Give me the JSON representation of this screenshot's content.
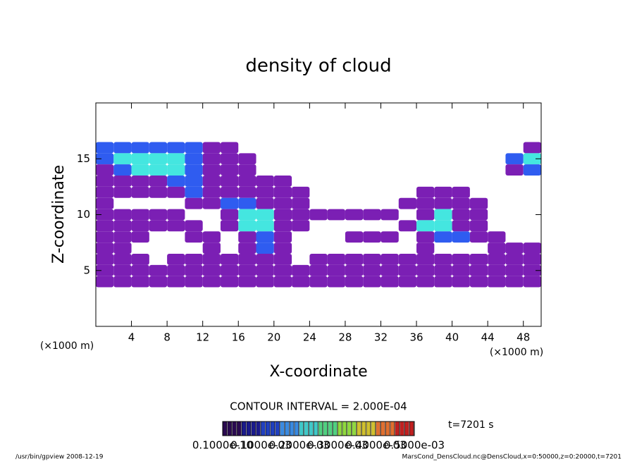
{
  "chart_data": {
    "type": "contour",
    "title": "density of cloud",
    "x_label": "X-coordinate",
    "y_label": "Z-coordinate",
    "x_unit": "(×1000 m)",
    "xlim": [
      0,
      50
    ],
    "ylim": [
      0,
      20
    ],
    "xticks": [
      4,
      8,
      12,
      16,
      20,
      24,
      28,
      32,
      36,
      40,
      44,
      48
    ],
    "yticks": [
      5,
      10,
      15
    ],
    "x": [
      1,
      3,
      5,
      7,
      9,
      11,
      13,
      15,
      17,
      19,
      21,
      23,
      25,
      27,
      29,
      31,
      33,
      35,
      37,
      39,
      41,
      43,
      45,
      47,
      49
    ],
    "z": [
      16,
      15,
      14,
      13,
      12,
      11,
      10,
      9,
      8,
      7,
      6,
      5,
      4
    ],
    "values": [
      [
        0.0002,
        0.0002,
        0.0002,
        0.0002,
        0.0002,
        0.0002,
        0.0001,
        0.0001,
        0,
        0,
        0,
        0,
        0,
        0,
        0,
        0,
        0,
        0,
        0,
        0,
        0,
        0,
        0,
        0,
        0.0001
      ],
      [
        0.0002,
        0.0003,
        0.0003,
        0.0003,
        0.0003,
        0.0002,
        0.0001,
        0.0001,
        0.0001,
        0,
        0,
        0,
        0,
        0,
        0,
        0,
        0,
        0,
        0,
        0,
        0,
        0,
        0,
        0.0002,
        0.0003
      ],
      [
        0.0001,
        0.0002,
        0.0003,
        0.0003,
        0.0003,
        0.0002,
        0.0001,
        0.0001,
        0.0001,
        0,
        0,
        0,
        0,
        0,
        0,
        0,
        0,
        0,
        0,
        0,
        0,
        0,
        0,
        0.0001,
        0.0002
      ],
      [
        0.0001,
        0.0001,
        0.0001,
        0.0001,
        0.0002,
        0.0002,
        0.0001,
        0.0001,
        0.0001,
        0.0001,
        0.0001,
        0,
        0,
        0,
        0,
        0,
        0,
        0,
        0,
        0,
        0,
        0,
        0,
        0,
        0
      ],
      [
        0.0001,
        0.0001,
        0.0001,
        0.0001,
        0.0001,
        0.0002,
        0.0001,
        0.0001,
        0.0001,
        0.0001,
        0.0001,
        0.0001,
        0,
        0,
        0,
        0,
        0,
        0,
        0.0001,
        0.0001,
        0.0001,
        0,
        0,
        0,
        0
      ],
      [
        0.0001,
        0,
        0,
        0,
        0,
        0.0001,
        0.0001,
        0.0002,
        0.0002,
        0.0001,
        0.0001,
        0.0001,
        0,
        0,
        0,
        0,
        0,
        0.0001,
        0.0001,
        0.0001,
        0.0001,
        0.0001,
        0,
        0,
        0
      ],
      [
        0.0001,
        0.0001,
        0.0001,
        0.0001,
        0.0001,
        0,
        0,
        0.0001,
        0.0003,
        0.0003,
        0.0001,
        0.0001,
        0.0001,
        0.0001,
        0.0001,
        0.0001,
        0.0001,
        0,
        0.0001,
        0.0003,
        0.0001,
        0.0001,
        0,
        0,
        0
      ],
      [
        0.0001,
        0.0001,
        0.0001,
        0.0001,
        0.0001,
        0.0001,
        0,
        0.0001,
        0.0003,
        0.0003,
        0.0001,
        0.0001,
        0,
        0,
        0,
        0,
        0,
        0.0001,
        0.0003,
        0.0003,
        0.0001,
        0.0001,
        0,
        0,
        0
      ],
      [
        0.0001,
        0.0001,
        0.0001,
        0,
        0,
        0.0001,
        0.0001,
        0,
        0.0001,
        0.0002,
        0.0001,
        0,
        0,
        0,
        0.0001,
        0.0001,
        0.0001,
        0,
        0.0001,
        0.0002,
        0.0002,
        0.0001,
        0.0001,
        0,
        0
      ],
      [
        0.0001,
        0.0001,
        0,
        0,
        0,
        0,
        0.0001,
        0,
        0.0001,
        0.0002,
        0.0001,
        0,
        0,
        0,
        0,
        0,
        0,
        0,
        0.0001,
        0,
        0,
        0,
        0.0001,
        0.0001,
        0.0001
      ],
      [
        0.0001,
        0.0001,
        0.0001,
        0,
        0.0001,
        0.0001,
        0.0001,
        0.0001,
        0.0001,
        0.0001,
        0.0001,
        0,
        0.0001,
        0.0001,
        0.0001,
        0.0001,
        0.0001,
        0.0001,
        0.0001,
        0.0001,
        0.0001,
        0.0001,
        0.0001,
        0.0001,
        0.0001
      ],
      [
        0.0001,
        0.0001,
        0.0001,
        0.0001,
        0.0001,
        0.0001,
        0.0001,
        0.0001,
        0.0001,
        0.0001,
        0.0001,
        0.0001,
        0.0001,
        0.0001,
        0.0001,
        0.0001,
        0.0001,
        0.0001,
        0.0001,
        0.0001,
        0.0001,
        0.0001,
        0.0001,
        0.0001,
        0.0001
      ],
      [
        0.0001,
        0.0001,
        0.0001,
        0.0001,
        0.0001,
        0.0001,
        0.0001,
        0.0001,
        0.0001,
        0.0001,
        0.0001,
        0.0001,
        0.0001,
        0.0001,
        0.0001,
        0.0001,
        0.0001,
        0.0001,
        0.0001,
        0.0001,
        0.0001,
        0.0001,
        0.0001,
        0.0001,
        0.0001
      ]
    ],
    "level_colors": [
      {
        "value": 0.0001,
        "color": "#7b1fb4"
      },
      {
        "value": 0.0002,
        "color": "#2f5cf0"
      },
      {
        "value": 0.0003,
        "color": "#44e6e0"
      }
    ],
    "contour_interval": "CONTOUR INTERVAL = 2.000E-04",
    "colorbar_colors": [
      "#2a0a50",
      "#1a1a8c",
      "#2040c0",
      "#3a8ae0",
      "#40c8c8",
      "#50d080",
      "#90d840",
      "#d0c030",
      "#e07030",
      "#c02020"
    ],
    "colorbar_labels": [
      "0.1000e-10",
      "0.1000e-03",
      "0.2000e-03",
      "0.3000e-03",
      "0.4000e-03",
      "0.5000e-03"
    ],
    "time": "t=7201 s",
    "footer_left": "/usr/bin/gpview  2008-12-19",
    "footer_right": "MarsCond_DensCloud.nc@DensCloud,x=0:50000,z=0:20000,t=7201"
  }
}
